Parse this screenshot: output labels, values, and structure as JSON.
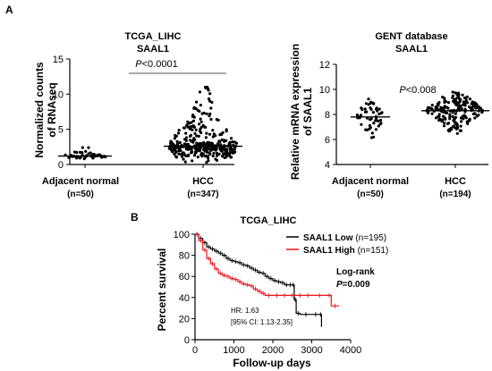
{
  "panel_labels": {
    "a": "A",
    "b": "B"
  },
  "chart_data": [
    {
      "id": "tcga-scatter",
      "type": "scatter",
      "title": "TCGA_LIHC",
      "subtitle": "SAAL1",
      "ylabel_line1": "Normalized counts",
      "ylabel_line2": "of RNAseq",
      "ylim": [
        0,
        15
      ],
      "yticks": [
        0,
        5,
        10,
        15
      ],
      "groups": [
        {
          "name": "Adjacent normal",
          "n_label": "(n=50)",
          "n": 50,
          "median": 1.2,
          "min": 0.7,
          "max": 2.4
        },
        {
          "name": "HCC",
          "n_label": "(n=347)",
          "n": 347,
          "median": 2.6,
          "min": 0.3,
          "max": 11.0
        }
      ],
      "pvalue": {
        "italic": "P",
        "rest": "<0.0001"
      }
    },
    {
      "id": "gent-scatter",
      "type": "scatter",
      "title": "GENT database",
      "subtitle": "SAAL1",
      "ylabel_line1": "Relative mRNA expression",
      "ylabel_line2": "of SAAL1",
      "ylim": [
        4,
        12
      ],
      "yticks": [
        4,
        6,
        8,
        10,
        12
      ],
      "groups": [
        {
          "name": "Adjacent normal",
          "n_label": "(n=50)",
          "n": 50,
          "median": 7.8,
          "min": 5.8,
          "max": 9.5
        },
        {
          "name": "HCC",
          "n_label": "(n=194)",
          "n": 194,
          "median": 8.3,
          "min": 5.9,
          "max": 10.2
        }
      ],
      "pvalue": {
        "italic": "P",
        "rest": "<0.008"
      }
    },
    {
      "id": "km-plot",
      "type": "line",
      "title": "TCGA_LIHC",
      "xlabel": "Follow-up days",
      "ylabel": "Percent survival",
      "xlim": [
        0,
        4000
      ],
      "ylim": [
        0,
        100
      ],
      "xticks": [
        0,
        1000,
        2000,
        3000,
        4000
      ],
      "yticks": [
        0,
        20,
        40,
        60,
        80,
        100
      ],
      "series": [
        {
          "name": "SAAL1 Low",
          "n_label": "(n=195)",
          "color": "#000000",
          "x": [
            0,
            100,
            200,
            300,
            400,
            500,
            600,
            700,
            800,
            900,
            1000,
            1100,
            1200,
            1300,
            1400,
            1500,
            1600,
            1700,
            1800,
            1900,
            2000,
            2100,
            2200,
            2300,
            2400,
            2500,
            2550,
            2600,
            2700,
            3000,
            3200,
            3250
          ],
          "y": [
            100,
            96,
            92,
            88,
            86,
            84,
            82,
            80,
            77,
            75,
            74,
            73,
            71,
            70,
            68,
            66,
            64,
            63,
            60,
            58,
            56,
            55,
            54,
            52,
            52,
            52,
            38,
            25,
            24,
            24,
            24,
            12
          ]
        },
        {
          "name": "SAAL1 High",
          "n_label": "(n=151)",
          "color": "#e8141b",
          "x": [
            0,
            100,
            200,
            300,
            400,
            500,
            600,
            700,
            800,
            900,
            1000,
            1100,
            1200,
            1300,
            1400,
            1500,
            1600,
            1700,
            1800,
            2000,
            2200,
            2400,
            2600,
            2800,
            3000,
            3400,
            3500,
            3700
          ],
          "y": [
            100,
            94,
            85,
            77,
            72,
            67,
            63,
            61,
            60,
            58,
            57,
            55,
            53,
            52,
            51,
            48,
            46,
            44,
            42,
            42,
            42,
            42,
            42,
            42,
            42,
            42,
            32,
            32
          ]
        }
      ],
      "annotations": {
        "logrank_title": "Log-rank",
        "logrank_p_italic": "P",
        "logrank_p_rest": "=0.009",
        "hr": "HR: 1.63",
        "ci": "[95% CI: 1.13-2.35]"
      }
    }
  ]
}
